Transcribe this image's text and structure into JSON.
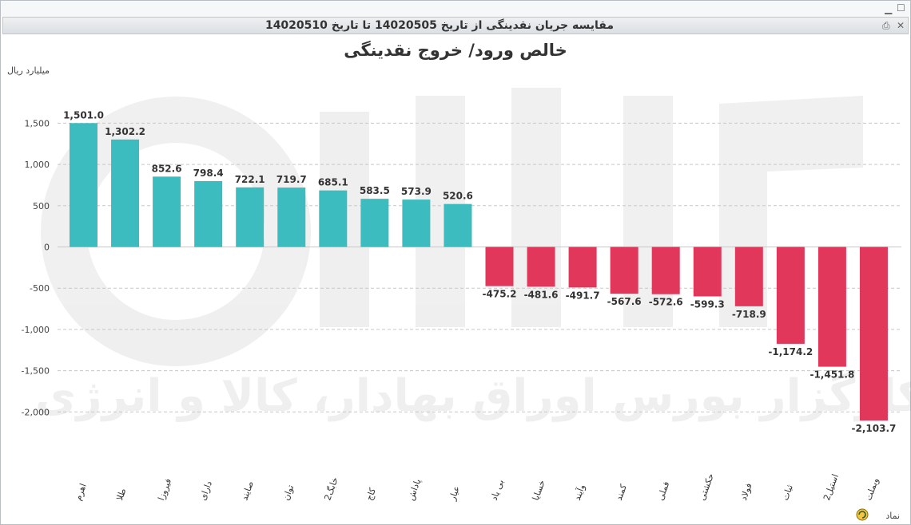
{
  "window": {
    "title": "مقایسه جریان نقدینگی از تاریخ 14020505 تا تاریخ 14020510",
    "icons": [
      "minimize-icon",
      "maximize-icon",
      "print-icon",
      "close-icon"
    ]
  },
  "watermark": {
    "logo_text": "آگاه",
    "tagline": "کارگزار بورس اوراق بهادار، کالا و انرژی"
  },
  "chart_data": {
    "type": "bar",
    "title": "خالص ورود/ خروج نقدینگی",
    "ylabel": "میلیارد ریال",
    "xlabel": "نماد",
    "categories": [
      "اهرم",
      "طلا",
      "فیروزا",
      "دارای",
      "صایند",
      "توان",
      "خابگ2",
      "کاج",
      "پاداش",
      "عیار",
      "بی یاد",
      "خسایا",
      "وآیند",
      "کمند",
      "فملی",
      "حکشتی",
      "فولاد",
      "ثبات",
      "استیل2",
      "وبملت"
    ],
    "values": [
      1501.0,
      1302.2,
      852.6,
      798.4,
      722.1,
      719.7,
      685.1,
      583.5,
      573.9,
      520.6,
      -475.2,
      -481.6,
      -491.7,
      -567.6,
      -572.6,
      -599.3,
      -718.9,
      -1174.2,
      -1451.8,
      -2103.7
    ],
    "value_labels": [
      "1,501.0",
      "1,302.2",
      "852.6",
      "798.4",
      "722.1",
      "719.7",
      "685.1",
      "583.5",
      "573.9",
      "520.6",
      "-475.2",
      "-481.6",
      "-491.7",
      "-567.6",
      "-572.6",
      "-599.3",
      "-718.9",
      "-1,174.2",
      "-1,451.8",
      "-2,103.7"
    ],
    "yticks": [
      1500,
      1000,
      500,
      0,
      -500,
      -1000,
      -1500,
      -2000
    ],
    "ytick_labels": [
      "1,500",
      "1,000",
      "500",
      "0",
      "-500",
      "-1,000",
      "-1,500",
      "-2,000"
    ],
    "ylim": [
      -2250,
      1650
    ],
    "grid": true,
    "colors": {
      "positive": "#3dbcbf",
      "negative": "#e0375a",
      "grid": "#c8c8c8"
    }
  }
}
